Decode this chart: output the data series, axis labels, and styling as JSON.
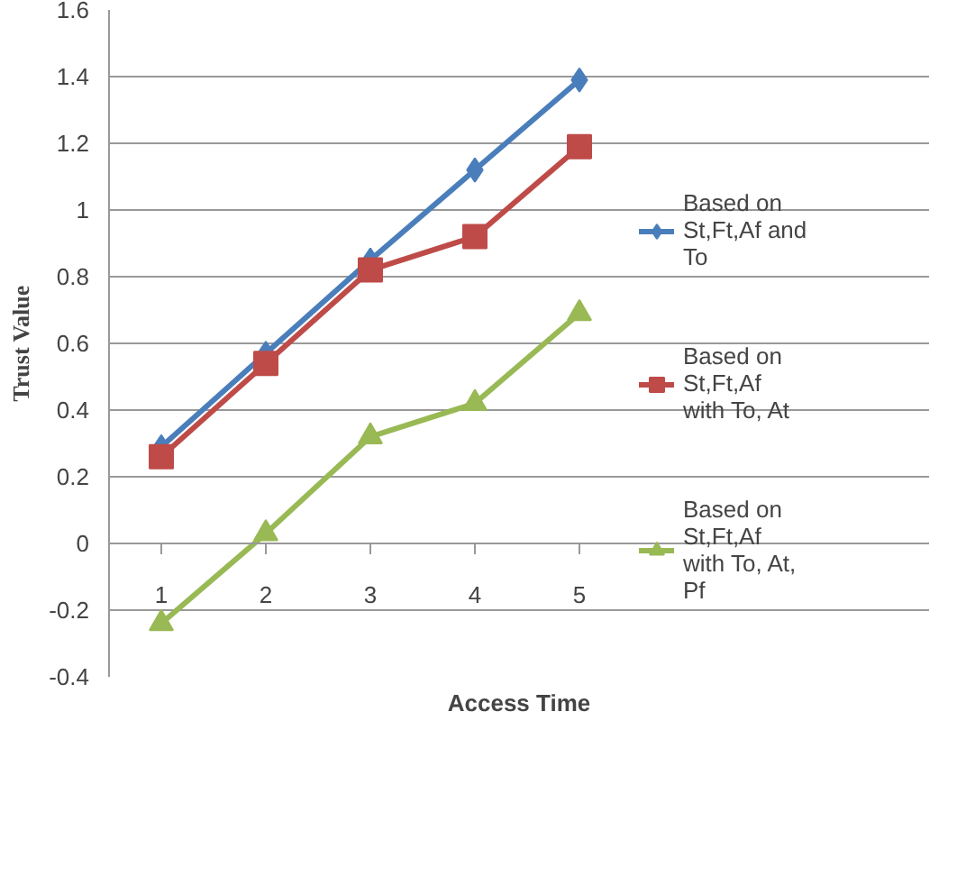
{
  "chart_data": {
    "type": "line",
    "xlabel": "Access Time",
    "ylabel": "Trust Value",
    "categories": [
      "1",
      "2",
      "3",
      "4",
      "5"
    ],
    "series": [
      {
        "name": "Based on St,Ft,Af and To",
        "color": "#4a7ebb",
        "marker": "diamond",
        "values": [
          0.29,
          0.57,
          0.85,
          1.12,
          1.39
        ]
      },
      {
        "name": "Based on St,Ft,Af with To, At",
        "color": "#be4b48",
        "marker": "square",
        "values": [
          0.26,
          0.54,
          0.82,
          0.92,
          1.19
        ]
      },
      {
        "name": "Based on St,Ft,Af with To, At, Pf",
        "color": "#98b954",
        "marker": "triangle",
        "values": [
          -0.24,
          0.03,
          0.32,
          0.42,
          0.69
        ]
      }
    ],
    "ylim": [
      -0.4,
      1.6
    ],
    "yticks": [
      -0.4,
      -0.2,
      0,
      0.2,
      0.4,
      0.6,
      0.8,
      1,
      1.2,
      1.4,
      1.6
    ],
    "grid": "y",
    "legend": "right",
    "line_style": "solid"
  }
}
